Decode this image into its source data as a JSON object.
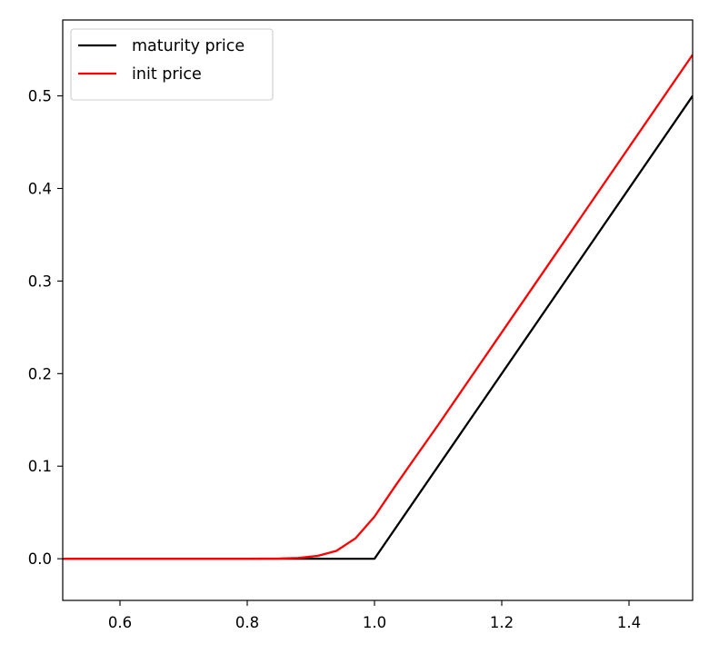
{
  "chart_data": {
    "type": "line",
    "title": "",
    "xlabel": "",
    "ylabel": "",
    "xlim": [
      0.51,
      1.5
    ],
    "ylim": [
      -0.045,
      0.582
    ],
    "xticks": [
      0.6,
      0.8,
      1.0,
      1.2,
      1.4
    ],
    "xtick_labels": [
      "0.6",
      "0.8",
      "1.0",
      "1.2",
      "1.4"
    ],
    "yticks": [
      0.0,
      0.1,
      0.2,
      0.3,
      0.4,
      0.5
    ],
    "ytick_labels": [
      "0.0",
      "0.1",
      "0.2",
      "0.3",
      "0.4",
      "0.5"
    ],
    "grid": false,
    "legend_position": "upper-left",
    "series": [
      {
        "name": "maturity price",
        "color": "#000000",
        "x": [
          0.5,
          1.0,
          1.5
        ],
        "y": [
          0.0,
          0.0,
          0.5
        ]
      },
      {
        "name": "init price",
        "color": "#ff0000",
        "x": [
          0.5,
          0.8,
          0.85,
          0.88,
          0.91,
          0.94,
          0.97,
          1.0,
          1.03,
          1.06,
          1.1,
          1.2,
          1.3,
          1.4,
          1.5
        ],
        "y": [
          0.0,
          0.0,
          0.0002,
          0.0008,
          0.003,
          0.0085,
          0.022,
          0.0455,
          0.076,
          0.1055,
          0.1445,
          0.2445,
          0.3445,
          0.4445,
          0.5445
        ]
      }
    ]
  }
}
